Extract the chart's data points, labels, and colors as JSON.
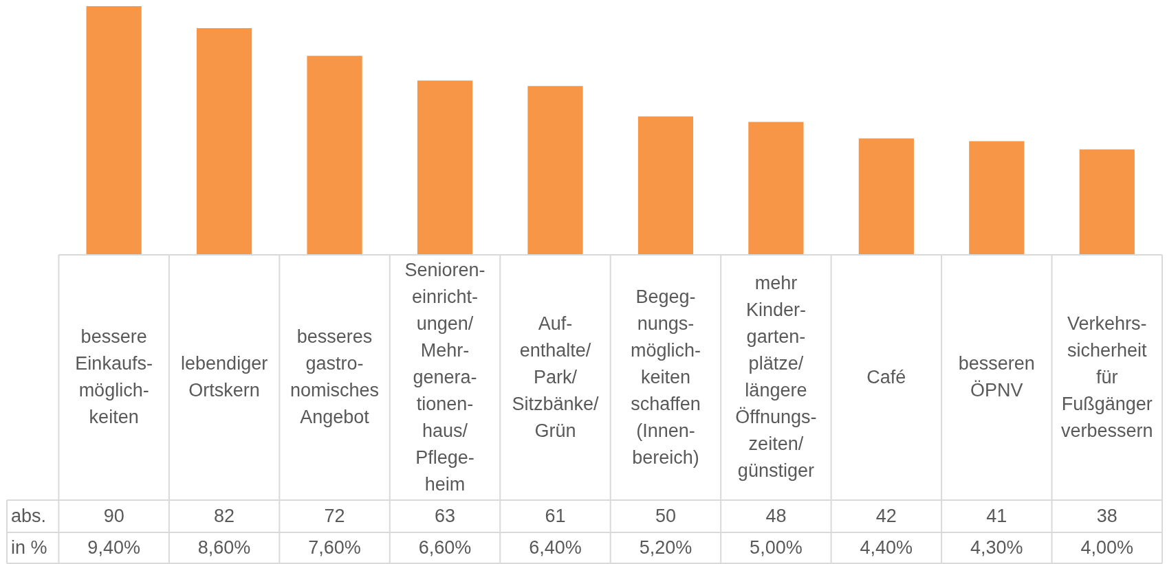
{
  "chart_data": {
    "type": "bar",
    "categories": [
      "bessere\nEinkaufs-\nmöglich-\nkeiten",
      "lebendiger\nOrtskern",
      "besseres\ngastro-\nnomisches\nAngebot",
      "Senioren-\neinricht-\nungen/\nMehr-\ngenera-\ntionen-\nhaus/\nPflege-\nheim",
      "Auf-\nenthalte/\nPark/\nSitzbänke/\nGrün",
      "Begeg-\nnungs-\nmöglich-\nkeiten\nschaffen\n(Innen-\nbereich)",
      "mehr\nKinder-\ngarten-\nplätze/\nlängere\nÖffnungs-\nzeiten/\ngünstiger",
      "Café",
      "besseren\nÖPNV",
      "Verkehrs-\nsicherheit\nfür\nFußgänger\nverbessern"
    ],
    "series": [
      {
        "name": "abs.",
        "color": "#f79646",
        "values": [
          90,
          82,
          72,
          63,
          61,
          50,
          48,
          42,
          41,
          38
        ]
      }
    ],
    "data_labels": true,
    "annotations": [
      "in %",
      "9,40%",
      "8,60%",
      "7,60%",
      "6,60%",
      "6,40%",
      "5,20%",
      "5,00%",
      "4,40%",
      "4,30%",
      "4,00%"
    ]
  }
}
